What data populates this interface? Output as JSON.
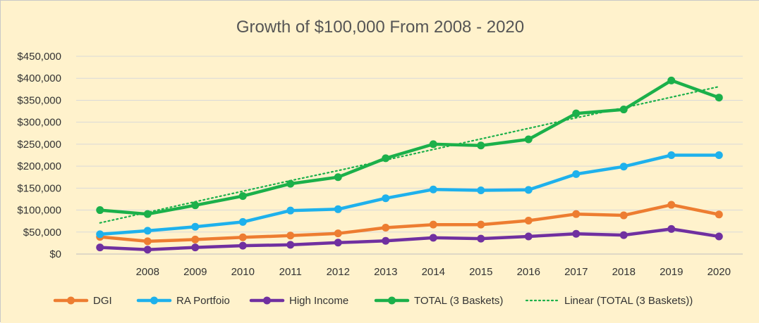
{
  "chart_data": {
    "type": "line",
    "title": "Growth of $100,000 From 2008 - 2020",
    "xlabel": "",
    "ylabel": "",
    "x_tick_labels": [
      "",
      "2008",
      "2009",
      "2010",
      "2011",
      "2012",
      "2013",
      "2014",
      "2015",
      "2016",
      "2017",
      "2018",
      "2019",
      "2020"
    ],
    "y_tick_labels": [
      "$0",
      "$50,000",
      "$100,000",
      "$150,000",
      "$200,000",
      "$250,000",
      "$300,000",
      "$350,000",
      "$400,000",
      "$450,000"
    ],
    "ylim": [
      0,
      450000
    ],
    "grid": "horizontal",
    "legend_position": "bottom",
    "background_color": "#FFF2CC",
    "series": [
      {
        "name": "DGI",
        "color": "#ED7D31",
        "style": "solid-markers",
        "values": [
          39000,
          29000,
          33000,
          38000,
          42000,
          47000,
          60000,
          67000,
          67000,
          76000,
          91000,
          88000,
          112000,
          90000
        ]
      },
      {
        "name": "RA Portfoio",
        "color": "#1EB1EC",
        "style": "solid-markers",
        "values": [
          45000,
          53000,
          62000,
          73000,
          99000,
          102000,
          127000,
          147000,
          145000,
          146000,
          182000,
          199000,
          225000,
          225000
        ]
      },
      {
        "name": "High Income",
        "color": "#7030A0",
        "style": "solid-markers",
        "values": [
          15000,
          10000,
          15000,
          19000,
          21000,
          26000,
          30000,
          37000,
          35000,
          40000,
          46000,
          43000,
          57000,
          40000
        ]
      },
      {
        "name": "TOTAL (3 Baskets)",
        "color": "#1BB04A",
        "style": "solid-markers",
        "values": [
          100000,
          91000,
          111000,
          132000,
          160000,
          175000,
          218000,
          250000,
          247000,
          261000,
          320000,
          329000,
          395000,
          356000
        ]
      },
      {
        "name": "Linear (TOTAL (3 Baskets))",
        "color": "#1BB04A",
        "style": "dotted",
        "values": [
          71000,
          95000,
          119000,
          143000,
          167000,
          190000,
          214000,
          238000,
          262000,
          286000,
          310000,
          333000,
          357000,
          381000
        ]
      }
    ]
  }
}
